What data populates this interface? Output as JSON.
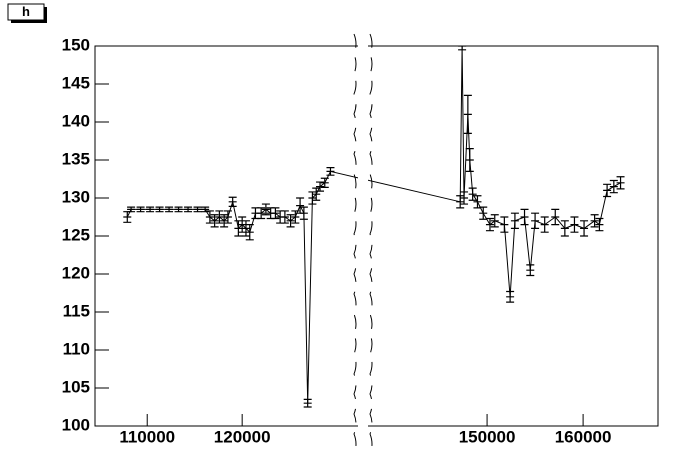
{
  "chart_data": {
    "type": "errorbar",
    "title": "h",
    "x": [
      107900,
      108300,
      109300,
      110300,
      111300,
      112300,
      113300,
      114300,
      115300,
      116100,
      116600,
      117100,
      117600,
      118100,
      118500,
      119000,
      119600,
      120000,
      120400,
      120800,
      121400,
      122000,
      122500,
      123000,
      123500,
      124000,
      124500,
      125100,
      125600,
      126100,
      126500,
      126900,
      127400,
      127800,
      128200,
      128700,
      129300,
      147200,
      147400,
      147600,
      148000,
      148200,
      148500,
      149000,
      149600,
      150300,
      150800,
      151800,
      152400,
      152900,
      153900,
      154500,
      155000,
      156000,
      157100,
      158100,
      159100,
      160100,
      161200,
      161700,
      162500,
      163200,
      163900
    ],
    "values": [
      127.5,
      128.5,
      128.5,
      128.5,
      128.5,
      128.5,
      128.5,
      128.5,
      128.5,
      128.5,
      127.5,
      127,
      127.5,
      127,
      127.5,
      129.5,
      126,
      126.5,
      126,
      125.5,
      128,
      128,
      128.5,
      128,
      128,
      127.5,
      127.5,
      127,
      127.5,
      129,
      128,
      103,
      130,
      130.5,
      131.5,
      132,
      133.5,
      129.5,
      150,
      130,
      141,
      135,
      130.5,
      129.5,
      128,
      126.5,
      127,
      126.5,
      117,
      127,
      127.5,
      120.5,
      127,
      126.5,
      127.5,
      126,
      126.5,
      126,
      127,
      126.5,
      131,
      131.5,
      132
    ],
    "errors": [
      0.7,
      0.3,
      0.3,
      0.3,
      0.3,
      0.3,
      0.3,
      0.3,
      0.3,
      0.3,
      0.8,
      0.8,
      0.8,
      0.8,
      0.8,
      0.6,
      1,
      1,
      1,
      1,
      0.7,
      0.7,
      0.7,
      0.7,
      0.7,
      0.8,
      0.8,
      0.8,
      0.8,
      1,
      0.8,
      0.5,
      0.8,
      0.8,
      0.6,
      0.6,
      0.5,
      0.8,
      0.5,
      0.8,
      2.5,
      1.5,
      0.8,
      0.8,
      0.8,
      0.8,
      0.8,
      1,
      0.7,
      1,
      1,
      0.7,
      1,
      1,
      1,
      1,
      1,
      1,
      0.8,
      0.8,
      0.8,
      0.8,
      0.8
    ],
    "color": "#000000",
    "xlim": [
      104500,
      167800
    ],
    "xbreak": [
      132200,
      137600
    ],
    "xticks": [
      110000,
      120000,
      150000,
      160000
    ],
    "ylim": [
      100,
      150
    ],
    "yticks": [
      100,
      105,
      110,
      115,
      120,
      125,
      130,
      135,
      140,
      145,
      150
    ]
  }
}
